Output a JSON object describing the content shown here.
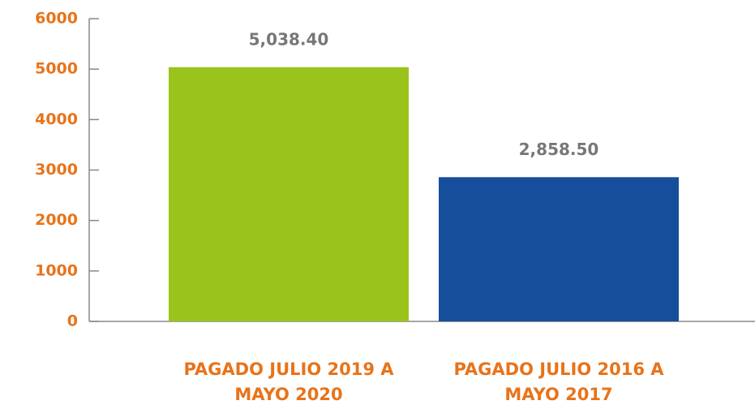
{
  "chart_data": {
    "type": "bar",
    "categories": [
      "PAGADO JULIO 2019 A MAYO 2020",
      "PAGADO JULIO 2016 A MAYO 2017"
    ],
    "values": [
      5038.4,
      2858.5
    ],
    "value_labels": [
      "5,038.40",
      "2,858.50"
    ],
    "colors": [
      "#9ac31c",
      "#174e9c"
    ],
    "ylim": [
      0,
      6000
    ],
    "yticks": [
      0,
      1000,
      2000,
      3000,
      4000,
      5000,
      6000
    ],
    "grid": false
  }
}
